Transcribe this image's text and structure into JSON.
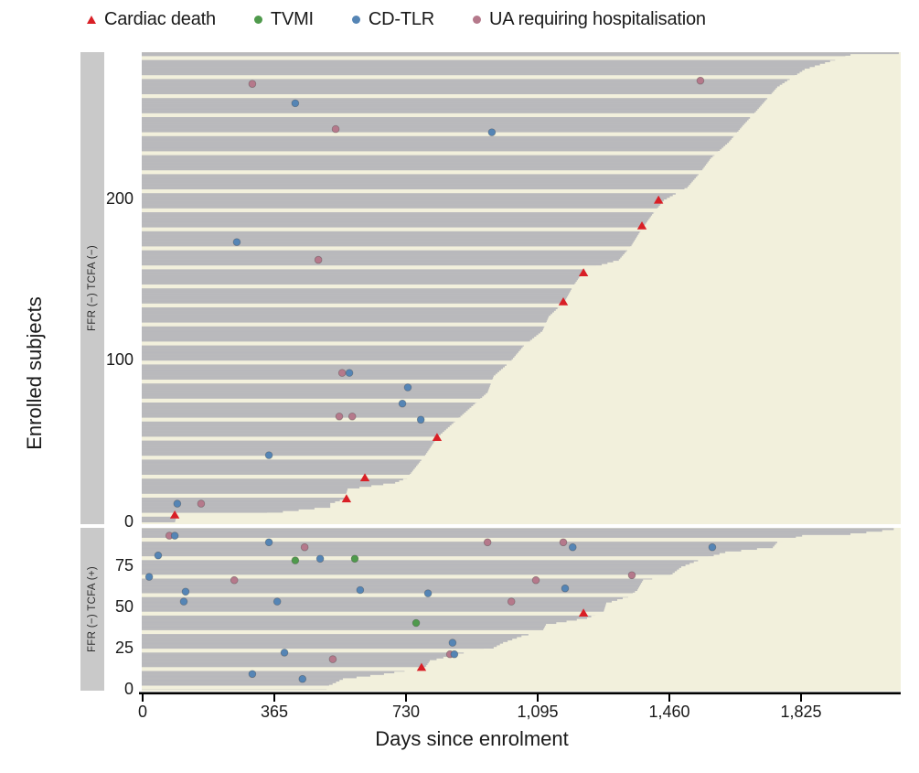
{
  "chart_data": {
    "type": "bar",
    "subtype": "swimmer-plot",
    "title": "",
    "xlabel": "Days since enrolment",
    "ylabel": "Enrolled subjects",
    "xlim": [
      0,
      2100
    ],
    "grid": false,
    "legend_position": "top",
    "colors": {
      "background_cream": "#f2f0dc",
      "bar_gray": "#b9b9bc",
      "strip_gray": "#c9c9c9",
      "cardiac_death": "#d91f26",
      "tvmi": "#4f9a4c",
      "cd_tlr": "#5585b5",
      "ua_hosp": "#b5798b",
      "axis": "#000000"
    },
    "legend": {
      "items": [
        {
          "label": "Cardiac death",
          "marker": "triangle",
          "color": "#d91f26"
        },
        {
          "label": "TVMI",
          "marker": "circle",
          "color": "#4f9a4c"
        },
        {
          "label": "CD-TLR",
          "marker": "circle",
          "color": "#5585b5"
        },
        {
          "label": "UA requiring hospitalisation",
          "marker": "circle",
          "color": "#b5798b"
        }
      ]
    },
    "x_ticks": {
      "days": [
        0,
        365,
        730,
        1095,
        1460,
        1825
      ],
      "labels": [
        "0",
        "365",
        "730",
        "1,095",
        "1,460",
        "1,825"
      ]
    },
    "panels": [
      {
        "label": "FFR (−) TCFA (−)",
        "n_subjects": 291,
        "y_tick_values": [
          0,
          100,
          200
        ],
        "y_tick_labels": [
          "0",
          "100",
          "200"
        ],
        "envelope_subject_days": [
          [
            0,
            90
          ],
          [
            4,
            95
          ],
          [
            5,
            345
          ],
          [
            9,
            520
          ],
          [
            11,
            520
          ],
          [
            14,
            560
          ],
          [
            20,
            568
          ],
          [
            24,
            700
          ],
          [
            27,
            733
          ],
          [
            41,
            783
          ],
          [
            52,
            816
          ],
          [
            80,
            956
          ],
          [
            90,
            973
          ],
          [
            99,
            1019
          ],
          [
            109,
            1057
          ],
          [
            118,
            1108
          ],
          [
            127,
            1126
          ],
          [
            136,
            1169
          ],
          [
            146,
            1194
          ],
          [
            156,
            1225
          ],
          [
            162,
            1320
          ],
          [
            171,
            1355
          ],
          [
            180,
            1380
          ],
          [
            190,
            1412
          ],
          [
            199,
            1445
          ],
          [
            207,
            1510
          ],
          [
            216,
            1545
          ],
          [
            225,
            1575
          ],
          [
            235,
            1625
          ],
          [
            245,
            1663
          ],
          [
            254,
            1700
          ],
          [
            269,
            1759
          ],
          [
            280,
            1835
          ],
          [
            289,
            1962
          ],
          [
            290,
            2096
          ]
        ],
        "events": [
          {
            "type": "ua_hosp",
            "day": 304,
            "subject": 271
          },
          {
            "type": "cd_tlr",
            "day": 423,
            "subject": 259
          },
          {
            "type": "ua_hosp",
            "day": 535,
            "subject": 243
          },
          {
            "type": "cd_tlr",
            "day": 968,
            "subject": 241
          },
          {
            "type": "ua_hosp",
            "day": 1546,
            "subject": 273
          },
          {
            "type": "cd_tlr",
            "day": 261,
            "subject": 173
          },
          {
            "type": "ua_hosp",
            "day": 487,
            "subject": 162
          },
          {
            "type": "cardiac_death",
            "day": 1430,
            "subject": 199
          },
          {
            "type": "cardiac_death",
            "day": 1384,
            "subject": 183
          },
          {
            "type": "cardiac_death",
            "day": 1222,
            "subject": 154
          },
          {
            "type": "cardiac_death",
            "day": 1166,
            "subject": 136
          },
          {
            "type": "ua_hosp",
            "day": 553,
            "subject": 92
          },
          {
            "type": "cd_tlr",
            "day": 573,
            "subject": 92
          },
          {
            "type": "cd_tlr",
            "day": 735,
            "subject": 83
          },
          {
            "type": "cd_tlr",
            "day": 720,
            "subject": 73
          },
          {
            "type": "ua_hosp",
            "day": 545,
            "subject": 65
          },
          {
            "type": "ua_hosp",
            "day": 581,
            "subject": 65
          },
          {
            "type": "cd_tlr",
            "day": 771,
            "subject": 63
          },
          {
            "type": "cardiac_death",
            "day": 816,
            "subject": 52
          },
          {
            "type": "cd_tlr",
            "day": 350,
            "subject": 41
          },
          {
            "type": "cardiac_death",
            "day": 616,
            "subject": 27
          },
          {
            "type": "cardiac_death",
            "day": 565,
            "subject": 14
          },
          {
            "type": "cd_tlr",
            "day": 96,
            "subject": 11
          },
          {
            "type": "ua_hosp",
            "day": 162,
            "subject": 11
          },
          {
            "type": "cardiac_death",
            "day": 89,
            "subject": 4
          }
        ]
      },
      {
        "label": "FFR (−) TCFA (+)",
        "n_subjects": 98,
        "y_tick_values": [
          0,
          25,
          50,
          75
        ],
        "y_tick_labels": [
          "0",
          "25",
          "50",
          "75"
        ],
        "envelope_subject_days": [
          [
            0,
            510
          ],
          [
            2,
            517
          ],
          [
            6,
            555
          ],
          [
            9,
            669
          ],
          [
            13,
            783
          ],
          [
            17,
            796
          ],
          [
            22,
            890
          ],
          [
            25,
            973
          ],
          [
            28,
            999
          ],
          [
            32,
            1050
          ],
          [
            35,
            1108
          ],
          [
            39,
            1118
          ],
          [
            43,
            1232
          ],
          [
            47,
            1278
          ],
          [
            52,
            1285
          ],
          [
            56,
            1346
          ],
          [
            60,
            1371
          ],
          [
            66,
            1387
          ],
          [
            69,
            1463
          ],
          [
            74,
            1493
          ],
          [
            79,
            1551
          ],
          [
            83,
            1615
          ],
          [
            86,
            1747
          ],
          [
            89,
            1759
          ],
          [
            93,
            1828
          ],
          [
            94,
            1962
          ],
          [
            96,
            2050
          ],
          [
            97,
            2082
          ]
        ],
        "events": [
          {
            "type": "ua_hosp",
            "day": 74,
            "subject": 93
          },
          {
            "type": "cd_tlr",
            "day": 89,
            "subject": 93
          },
          {
            "type": "cd_tlr",
            "day": 350,
            "subject": 89
          },
          {
            "type": "ua_hosp",
            "day": 956,
            "subject": 89
          },
          {
            "type": "ua_hosp",
            "day": 1166,
            "subject": 89
          },
          {
            "type": "cd_tlr",
            "day": 1192,
            "subject": 86
          },
          {
            "type": "cd_tlr",
            "day": 1579,
            "subject": 86
          },
          {
            "type": "ua_hosp",
            "day": 449,
            "subject": 86
          },
          {
            "type": "cd_tlr",
            "day": 43,
            "subject": 81
          },
          {
            "type": "tvmi",
            "day": 423,
            "subject": 78
          },
          {
            "type": "cd_tlr",
            "day": 492,
            "subject": 79
          },
          {
            "type": "tvmi",
            "day": 588,
            "subject": 79
          },
          {
            "type": "cd_tlr",
            "day": 18,
            "subject": 68
          },
          {
            "type": "ua_hosp",
            "day": 254,
            "subject": 66
          },
          {
            "type": "ua_hosp",
            "day": 1356,
            "subject": 69
          },
          {
            "type": "ua_hosp",
            "day": 1090,
            "subject": 66
          },
          {
            "type": "cd_tlr",
            "day": 119,
            "subject": 59
          },
          {
            "type": "cd_tlr",
            "day": 603,
            "subject": 60
          },
          {
            "type": "cd_tlr",
            "day": 791,
            "subject": 58
          },
          {
            "type": "cd_tlr",
            "day": 1171,
            "subject": 61
          },
          {
            "type": "cd_tlr",
            "day": 114,
            "subject": 53
          },
          {
            "type": "cd_tlr",
            "day": 373,
            "subject": 53
          },
          {
            "type": "ua_hosp",
            "day": 1022,
            "subject": 53
          },
          {
            "type": "tvmi",
            "day": 758,
            "subject": 40
          },
          {
            "type": "cardiac_death",
            "day": 1222,
            "subject": 46
          },
          {
            "type": "cd_tlr",
            "day": 859,
            "subject": 28
          },
          {
            "type": "cd_tlr",
            "day": 393,
            "subject": 22
          },
          {
            "type": "ua_hosp",
            "day": 527,
            "subject": 18
          },
          {
            "type": "ua_hosp",
            "day": 852,
            "subject": 21
          },
          {
            "type": "cd_tlr",
            "day": 864,
            "subject": 21
          },
          {
            "type": "cardiac_death",
            "day": 773,
            "subject": 13
          },
          {
            "type": "cd_tlr",
            "day": 304,
            "subject": 9
          },
          {
            "type": "cd_tlr",
            "day": 443,
            "subject": 6
          }
        ]
      }
    ]
  }
}
